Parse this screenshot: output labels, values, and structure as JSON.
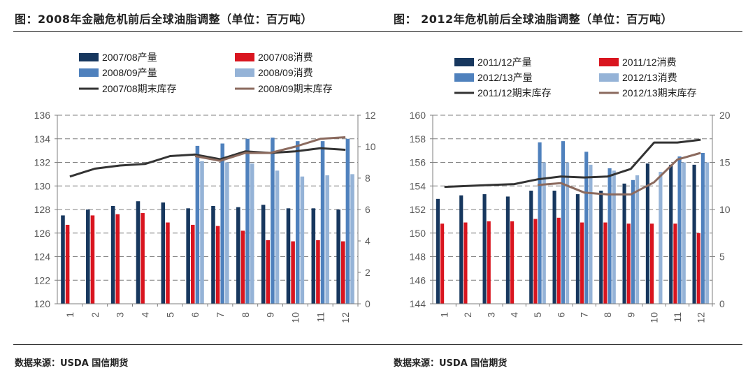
{
  "left": {
    "title": "图：2008年金融危机前后全球油脂调整（单位：百万吨）",
    "source": "数据来源：USDA 国信期货",
    "chart_data": {
      "type": "bar",
      "categories": [
        "1",
        "2",
        "3",
        "4",
        "5",
        "6",
        "7",
        "8",
        "9",
        "10",
        "11",
        "12"
      ],
      "y_left": {
        "min": 120,
        "max": 136,
        "ticks": [
          "120",
          "122",
          "124",
          "126",
          "128",
          "130",
          "132",
          "134",
          "136"
        ]
      },
      "y_right": {
        "min": 0,
        "max": 12,
        "ticks": [
          "0",
          "2",
          "4",
          "6",
          "8",
          "10",
          "12"
        ]
      },
      "bar_series": [
        {
          "name": "2007/08产量",
          "color": "#17375e",
          "values": [
            127.5,
            128.0,
            128.3,
            128.7,
            128.6,
            128.1,
            128.3,
            128.2,
            128.4,
            128.1,
            128.1,
            128.0
          ]
        },
        {
          "name": "2007/08消费",
          "color": "#d9151f",
          "values": [
            126.7,
            127.5,
            127.6,
            127.7,
            126.9,
            126.7,
            126.6,
            126.2,
            125.4,
            125.3,
            125.4,
            125.3
          ]
        },
        {
          "name": "2008/09产量",
          "color": "#4f81bd",
          "values": [
            null,
            null,
            null,
            null,
            null,
            133.4,
            133.6,
            134.0,
            134.1,
            133.8,
            133.8,
            134.0
          ]
        },
        {
          "name": "2008/09消费",
          "color": "#95b3d7",
          "values": [
            null,
            null,
            null,
            null,
            null,
            132.1,
            132.0,
            131.9,
            131.3,
            130.8,
            130.9,
            131.0
          ]
        }
      ],
      "line_series": [
        {
          "name": "2007/08期末库存",
          "color": "#333333",
          "values": [
            8.1,
            8.6,
            8.8,
            8.9,
            9.4,
            9.5,
            9.2,
            9.7,
            9.6,
            9.7,
            9.9,
            9.8
          ]
        },
        {
          "name": "2008/09期末库存",
          "color": "#8b6a5e",
          "values": [
            null,
            null,
            null,
            null,
            null,
            9.4,
            9.1,
            9.6,
            9.6,
            10.0,
            10.5,
            10.6
          ]
        }
      ]
    }
  },
  "right": {
    "title": "图：  2012年危机前后全球油脂调整（单位：百万吨）",
    "source": "数据来源：USDA 国信期货",
    "chart_data": {
      "type": "bar",
      "categories": [
        "1",
        "2",
        "3",
        "4",
        "5",
        "6",
        "7",
        "8",
        "9",
        "10",
        "11",
        "12"
      ],
      "y_left": {
        "min": 144,
        "max": 160,
        "ticks": [
          "144",
          "146",
          "148",
          "150",
          "152",
          "154",
          "156",
          "158",
          "160"
        ]
      },
      "y_right": {
        "min": 0,
        "max": 20,
        "ticks": [
          "0",
          "5",
          "10",
          "15",
          "20"
        ]
      },
      "bar_series": [
        {
          "name": "2011/12产量",
          "color": "#17375e",
          "values": [
            152.9,
            153.2,
            153.3,
            153.1,
            153.6,
            153.6,
            153.3,
            153.6,
            154.2,
            155.9,
            155.8,
            155.8
          ]
        },
        {
          "name": "2011/12消费",
          "color": "#d9151f",
          "values": [
            150.8,
            150.9,
            151.0,
            151.0,
            151.2,
            151.3,
            150.9,
            150.9,
            150.8,
            150.8,
            150.8,
            150.0
          ]
        },
        {
          "name": "2012/13产量",
          "color": "#4f81bd",
          "values": [
            null,
            null,
            null,
            null,
            157.7,
            157.8,
            156.9,
            155.5,
            154.5,
            null,
            156.5,
            156.8
          ]
        },
        {
          "name": "2012/13消费",
          "color": "#95b3d7",
          "values": [
            null,
            null,
            null,
            null,
            156.0,
            156.0,
            155.8,
            155.3,
            154.9,
            155.2,
            156.0,
            156.0
          ]
        }
      ],
      "line_series": [
        {
          "name": "2011/12期末库存",
          "color": "#333333",
          "values": [
            12.4,
            12.5,
            12.6,
            12.7,
            13.2,
            13.5,
            13.4,
            13.5,
            14.3,
            17.1,
            17.1,
            17.4
          ]
        },
        {
          "name": "2012/13期末库存",
          "color": "#8b6a5e",
          "values": [
            null,
            null,
            null,
            null,
            12.6,
            12.8,
            11.8,
            11.6,
            11.6,
            12.9,
            15.3,
            16.0
          ]
        }
      ]
    }
  }
}
